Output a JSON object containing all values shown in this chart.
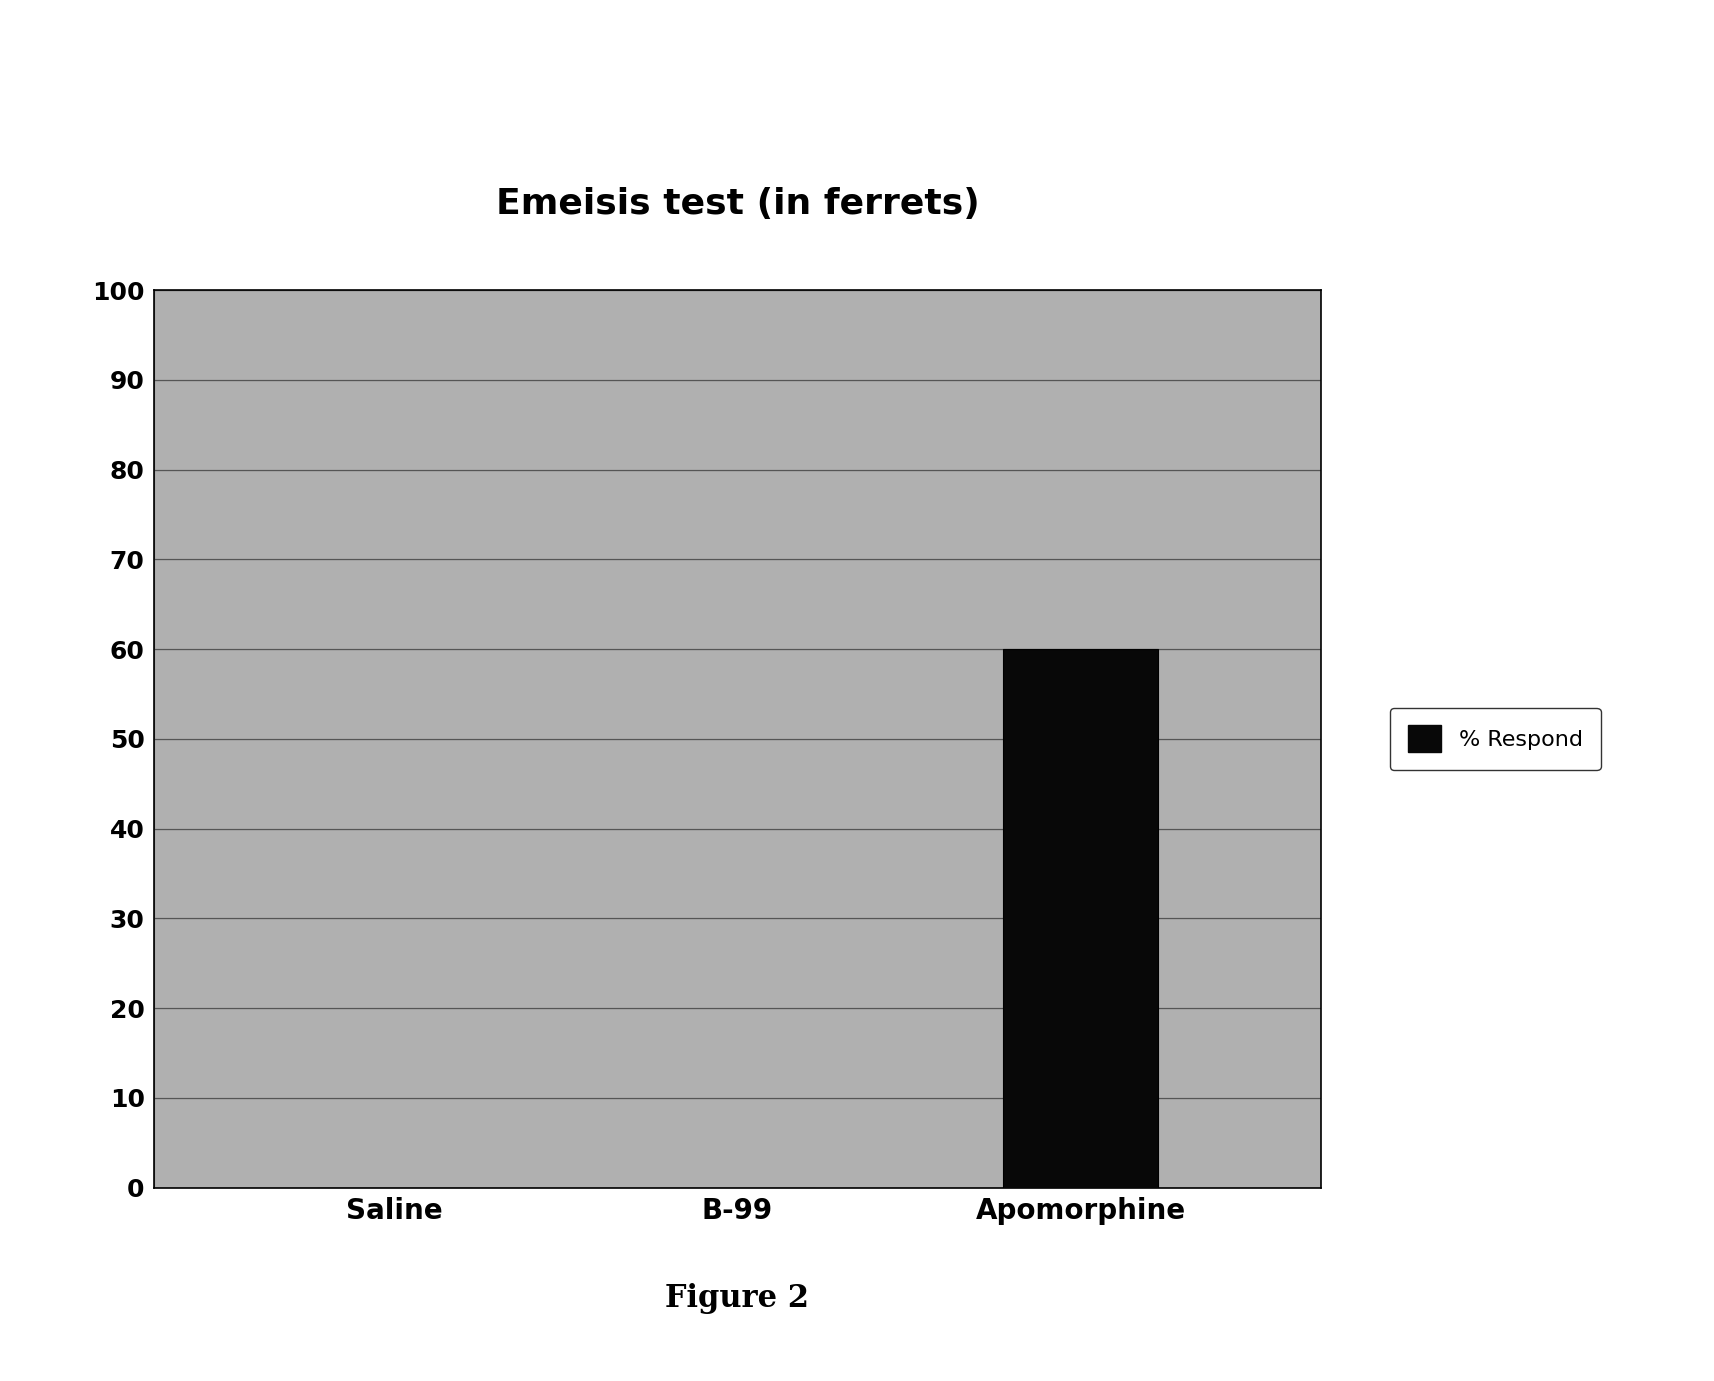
{
  "title": "Emeisis test (in ferrets)",
  "categories": [
    "Saline",
    "B-99",
    "Apomorphine"
  ],
  "values": [
    0,
    0,
    60
  ],
  "bar_color": "#080808",
  "background_color": "#ffffff",
  "plot_bg_color": "#b0b0b0",
  "grid_color": "#555555",
  "ylim": [
    0,
    100
  ],
  "yticks": [
    0,
    10,
    20,
    30,
    40,
    50,
    60,
    70,
    80,
    90,
    100
  ],
  "legend_label": "% Respond",
  "figure_caption": "Figure 2",
  "title_fontsize": 26,
  "tick_fontsize": 18,
  "xtick_fontsize": 20,
  "legend_fontsize": 16,
  "caption_fontsize": 22,
  "bar_width": 0.45
}
